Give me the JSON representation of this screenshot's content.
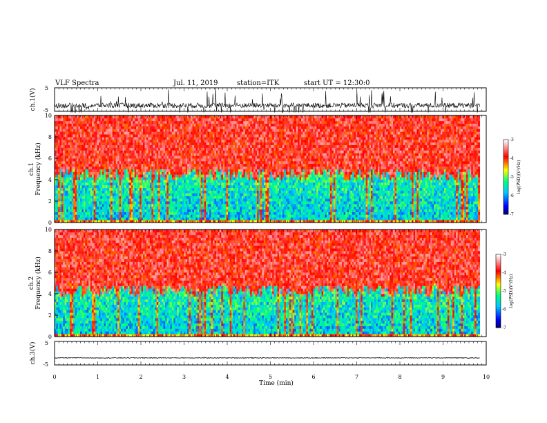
{
  "header": {
    "title": "VLF Spectra",
    "date": "Jul. 11, 2019",
    "station": "station=ITK",
    "start": "start UT = 12:30:0"
  },
  "colors": {
    "spectrogram_scale": [
      "#000060",
      "#0000ff",
      "#00c8ff",
      "#00ff80",
      "#ffff00",
      "#ff0000",
      "#ffffff"
    ]
  },
  "chart_data": [
    {
      "type": "line",
      "panel": "ch1-waveform",
      "ylabel": "ch.1(V)",
      "ylim": [
        -5,
        5
      ],
      "yticks": [
        "5",
        "-5"
      ],
      "xlim": [
        0,
        10
      ],
      "baseline": -2.5
    },
    {
      "type": "heatmap",
      "panel": "ch1-spectrogram",
      "ylabel": "ch.1\nFrequency (kHz)",
      "ylim": [
        0,
        10
      ],
      "yticks": [
        "0",
        "2",
        "4",
        "6",
        "8",
        "10"
      ],
      "xlim": [
        0,
        10
      ],
      "data_end_x": 9.85,
      "boundary_khz": 4.5,
      "colorbar": {
        "label": "log(PSD)(V²/Hz)",
        "range": [
          -7,
          -3
        ],
        "ticks": [
          "-3",
          "-4",
          "-5",
          "-6",
          "-7"
        ]
      }
    },
    {
      "type": "heatmap",
      "panel": "ch2-spectrogram",
      "ylabel": "ch.2\nFrequency (kHz)",
      "ylim": [
        0,
        10
      ],
      "yticks": [
        "0",
        "2",
        "4",
        "6",
        "8",
        "10"
      ],
      "xlim": [
        0,
        10
      ],
      "data_end_x": 9.85,
      "boundary_khz": 4.3,
      "colorbar": {
        "label": "log(PSD)(V²/Hz)",
        "range": [
          -7,
          -3
        ],
        "ticks": [
          "-3",
          "-4",
          "-5",
          "-6",
          "-7"
        ]
      }
    },
    {
      "type": "line",
      "panel": "ch3-waveform",
      "ylabel": "ch.3(V)",
      "ylim": [
        -5,
        5
      ],
      "yticks": [
        "5",
        "-5"
      ],
      "xlim": [
        0,
        10
      ],
      "baseline": -2.0
    }
  ],
  "xaxis": {
    "label": "Time (min)",
    "ticks": [
      "0",
      "1",
      "2",
      "3",
      "4",
      "5",
      "6",
      "7",
      "8",
      "9",
      "10"
    ]
  }
}
